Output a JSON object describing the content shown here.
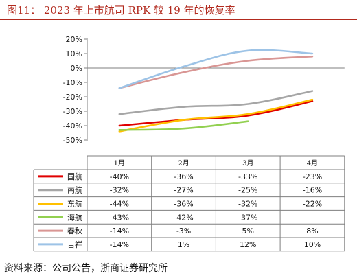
{
  "header": {
    "title": "图11：  2023 年上市航司 RPK 较 19 年的恢复率"
  },
  "footer": {
    "source": "资料来源：公司公告，浙商证券研究所"
  },
  "chart_data": {
    "type": "line",
    "title": "",
    "xlabel": "",
    "ylabel": "",
    "categories": [
      "1月",
      "2月",
      "3月",
      "4月"
    ],
    "ylim": [
      -50,
      20
    ],
    "ytick_step": 10,
    "ytick_format": "percent",
    "grid": false,
    "legend": "table-rows",
    "series": [
      {
        "name": "国航",
        "color": "#e00000",
        "values": [
          -40,
          -36,
          -33,
          -23
        ],
        "labels": [
          "-40%",
          "-36%",
          "-33%",
          "-23%"
        ]
      },
      {
        "name": "南航",
        "color": "#a6a6a6",
        "values": [
          -32,
          -27,
          -25,
          -16
        ],
        "labels": [
          "-32%",
          "-27%",
          "-25%",
          "-16%"
        ]
      },
      {
        "name": "东航",
        "color": "#ffc000",
        "values": [
          -44,
          -36,
          -32,
          -22
        ],
        "labels": [
          "-44%",
          "-36%",
          "-32%",
          "-22%"
        ]
      },
      {
        "name": "海航",
        "color": "#92d050",
        "values": [
          -43,
          -42,
          -37,
          null
        ],
        "labels": [
          "-43%",
          "-42%",
          "-37%",
          ""
        ]
      },
      {
        "name": "春秋",
        "color": "#d99694",
        "values": [
          -14,
          -3,
          5,
          8
        ],
        "labels": [
          "-14%",
          "-3%",
          "5%",
          "8%"
        ]
      },
      {
        "name": "吉祥",
        "color": "#9dc3e6",
        "values": [
          -14,
          1,
          12,
          10
        ],
        "labels": [
          "-14%",
          "1%",
          "12%",
          "10%"
        ]
      }
    ]
  }
}
